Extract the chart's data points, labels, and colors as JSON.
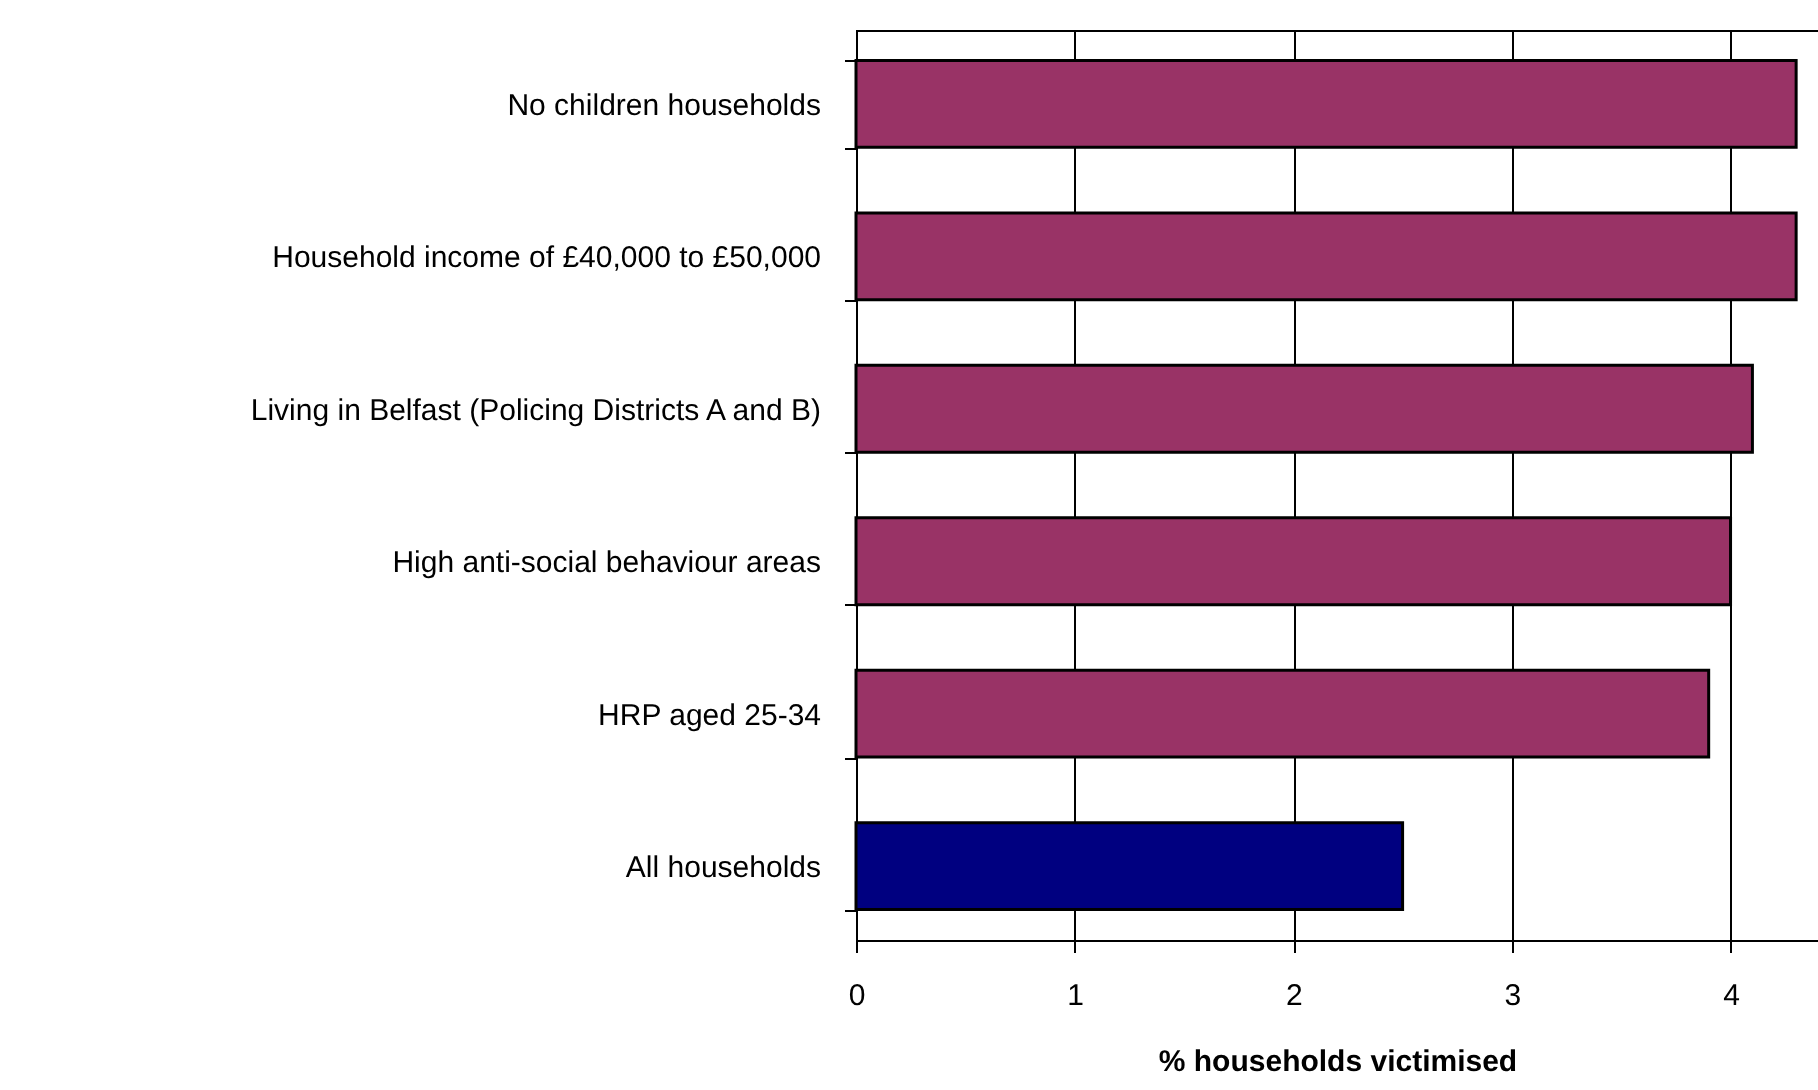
{
  "chart_data": {
    "type": "bar",
    "orientation": "horizontal",
    "categories": [
      "No children households",
      "Household income of £40,000 to £50,000",
      "Living in Belfast (Policing Districts A and B)",
      "High anti-social behaviour areas",
      "HRP aged 25-34",
      "All households"
    ],
    "values": [
      4.3,
      4.3,
      4.1,
      4.0,
      3.9,
      2.5
    ],
    "colors": [
      "#993366",
      "#993366",
      "#993366",
      "#993366",
      "#993366",
      "#000080"
    ],
    "xlabel": "% households victimised",
    "xlim": [
      0,
      4.4
    ],
    "xticks": [
      0,
      1,
      2,
      3,
      4
    ],
    "grid": "x"
  }
}
